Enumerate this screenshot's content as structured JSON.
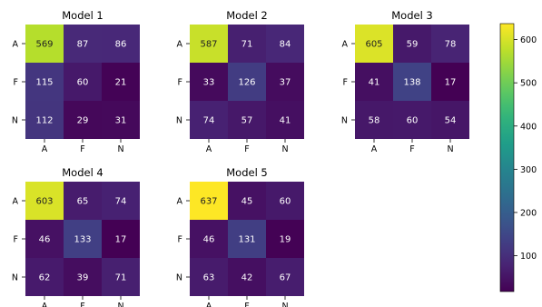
{
  "chart_data": {
    "type": "heatmap",
    "rows": [
      "A",
      "F",
      "N"
    ],
    "cols": [
      "A",
      "F",
      "N"
    ],
    "colormap": "viridis",
    "colorbar": {
      "min": 17,
      "max": 637,
      "ticks": [
        100,
        200,
        300,
        400,
        500,
        600
      ]
    },
    "panels": [
      {
        "title": "Model 1",
        "matrix": [
          [
            569,
            87,
            86
          ],
          [
            115,
            60,
            21
          ],
          [
            112,
            29,
            31
          ]
        ]
      },
      {
        "title": "Model 2",
        "matrix": [
          [
            587,
            71,
            84
          ],
          [
            33,
            126,
            37
          ],
          [
            74,
            57,
            41
          ]
        ]
      },
      {
        "title": "Model 3",
        "matrix": [
          [
            605,
            59,
            78
          ],
          [
            41,
            138,
            17
          ],
          [
            58,
            60,
            54
          ]
        ]
      },
      {
        "title": "Model 4",
        "matrix": [
          [
            603,
            65,
            74
          ],
          [
            46,
            133,
            17
          ],
          [
            62,
            39,
            71
          ]
        ]
      },
      {
        "title": "Model 5",
        "matrix": [
          [
            637,
            45,
            60
          ],
          [
            46,
            131,
            19
          ],
          [
            63,
            42,
            67
          ]
        ]
      }
    ]
  }
}
